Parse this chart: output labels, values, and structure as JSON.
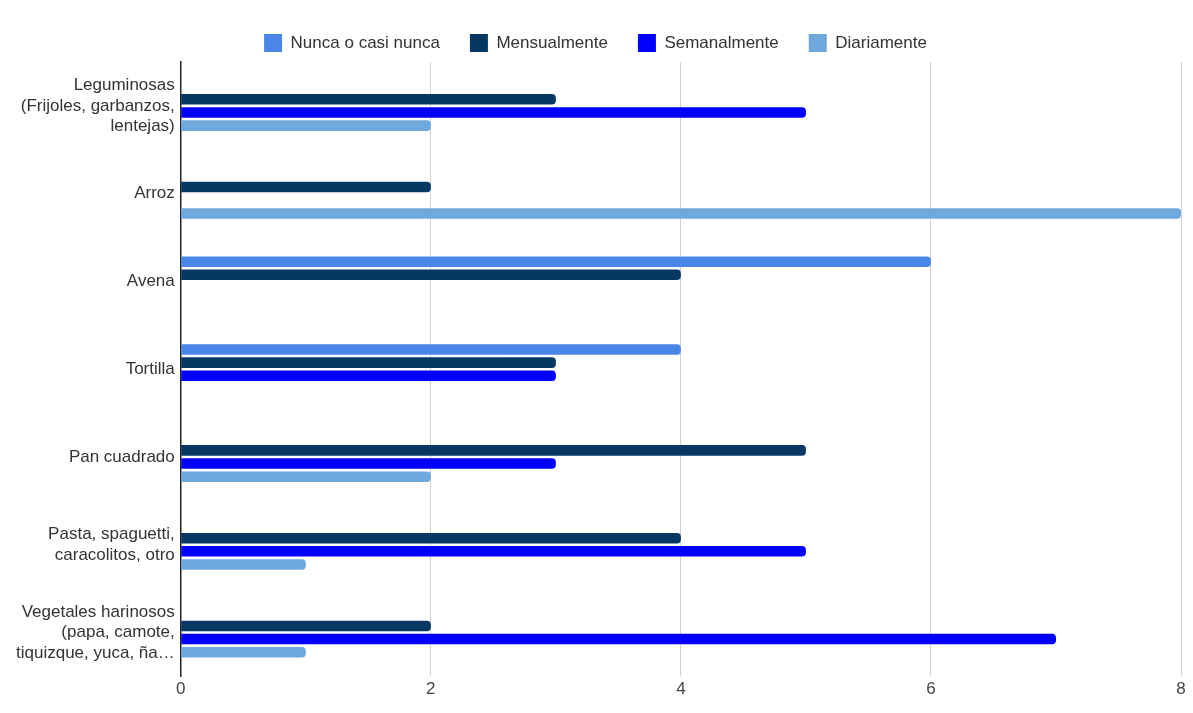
{
  "chart_data": {
    "type": "bar",
    "orientation": "horizontal",
    "categories": [
      "Leguminosas (Frijoles, garbanzos, lentejas)",
      "Arroz",
      "Avena",
      "Tortilla",
      "Pan cuadrado",
      "Pasta, spaguetti, caracolitos, otro",
      "Vegetales harinosos (papa, camote, tiquizque, yuca, ña…"
    ],
    "series": [
      {
        "name": "Nunca o casi nunca",
        "color": "#4a86e8",
        "values": [
          0,
          0,
          6,
          4,
          0,
          0,
          0
        ]
      },
      {
        "name": "Mensualmente",
        "color": "#073763",
        "values": [
          3,
          2,
          4,
          3,
          5,
          4,
          2
        ]
      },
      {
        "name": "Semanalmente",
        "color": "#0000ff",
        "values": [
          5,
          0,
          0,
          3,
          3,
          5,
          7
        ]
      },
      {
        "name": "Diariamente",
        "color": "#6fa8dc",
        "values": [
          2,
          8,
          0,
          0,
          2,
          1,
          1
        ]
      }
    ],
    "xlim": [
      0,
      8
    ],
    "xticks": [
      0,
      2,
      4,
      6,
      8
    ],
    "grid": "x",
    "legend": "top"
  }
}
